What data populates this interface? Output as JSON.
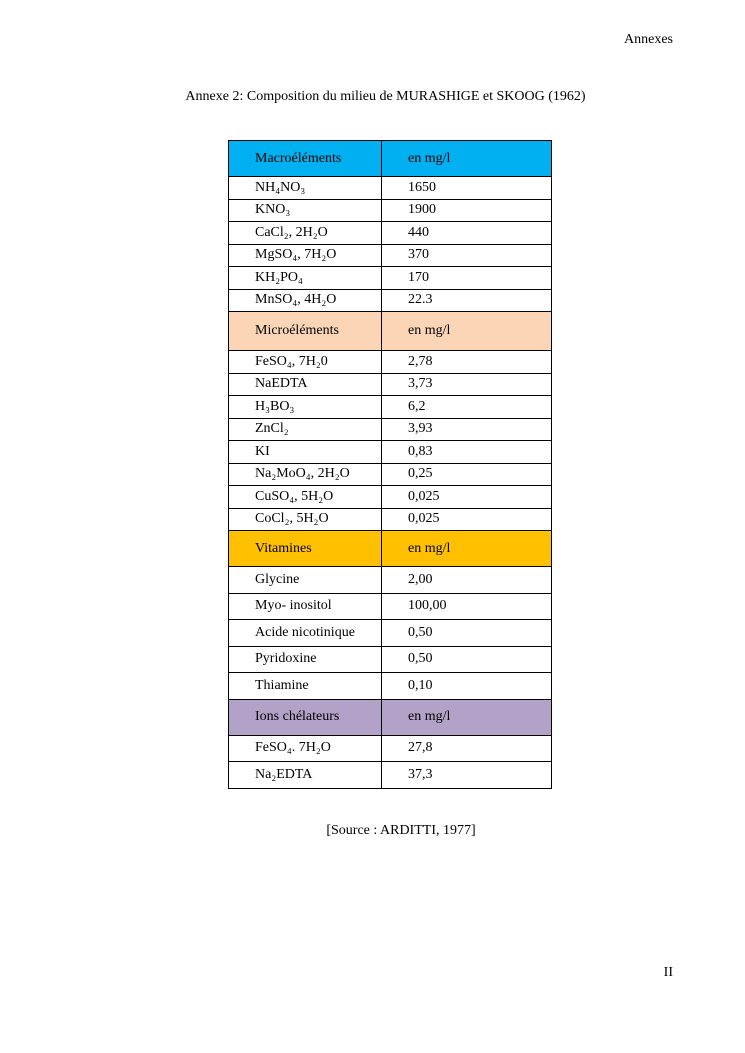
{
  "header": "Annexes",
  "title": "Annexe 2: Composition du milieu de MURASHIGE et SKOOG (1962)",
  "colors": {
    "macro": "#00b0f0",
    "micro": "#fbd5b5",
    "vitamines": "#ffc000",
    "ions": "#b2a2c7"
  },
  "sections": [
    {
      "label": "Macroéléments",
      "unit": "en mg/l",
      "rows": [
        [
          "NH₄NO₃",
          "1650"
        ],
        [
          "KNO₃",
          "1900"
        ],
        [
          "CaCl₂, 2H₂O",
          "440"
        ],
        [
          "MgSO₄, 7H₂O",
          "370"
        ],
        [
          "KH₂PO₄",
          "170"
        ],
        [
          "MnSO₄, 4H₂O",
          "22.3"
        ]
      ]
    },
    {
      "label": "Microéléments",
      "unit": " en mg/l",
      "rows": [
        [
          "FeSO₄, 7H₂0",
          "2,78"
        ],
        [
          "NaEDTA",
          "3,73"
        ],
        [
          "H₃BO₃",
          "6,2"
        ],
        [
          "ZnCl₂",
          "3,93"
        ],
        [
          "KI",
          "0,83"
        ],
        [
          "Na₂MoO₄, 2H₂O",
          "0,25"
        ],
        [
          "CuSO₄, 5H₂O",
          "0,025"
        ],
        [
          "CoCl₂, 5H₂O",
          "0,025"
        ]
      ]
    },
    {
      "label": "Vitamines",
      "unit": "en mg/l",
      "rows": [
        [
          "Glycine",
          "2,00"
        ],
        [
          "Myo- inositol",
          "100,00"
        ],
        [
          "Acide nicotinique",
          "0,50"
        ],
        [
          "Pyridoxine",
          "0,50"
        ],
        [
          "Thiamine",
          "0,10"
        ]
      ]
    },
    {
      "label": "Ions chélateurs",
      "unit": "en mg/l",
      "rows": [
        [
          "FeSO₄. 7H₂O",
          "27,8"
        ],
        [
          "Na₂EDTA",
          "37,3"
        ]
      ]
    }
  ],
  "source": "[Source : ARDITTI, 1977]",
  "page_number": "II"
}
